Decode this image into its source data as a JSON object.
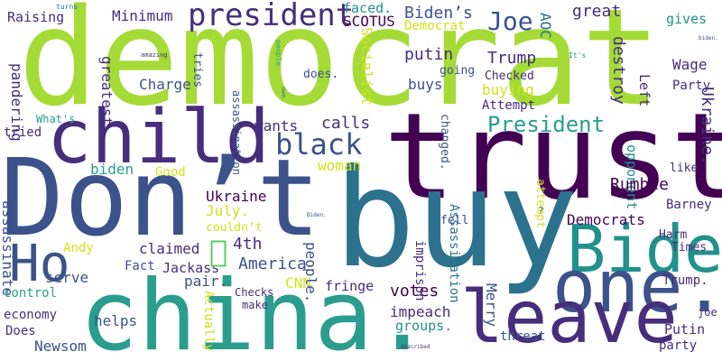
{
  "cloud": {
    "colors": {
      "lime": "#a5db36",
      "yellow": "#d2e21b",
      "green": "#5ec962",
      "teal": "#2a9d8f",
      "cyan": "#21918c",
      "blue": "#2c728e",
      "navy": "#3b528b",
      "indigo": "#472d7b",
      "purple": "#440154",
      "mint": "#4ac16d"
    },
    "words": [
      {
        "text": "democrat",
        "color": "lime"
      },
      {
        "text": "trust",
        "color": "purple"
      },
      {
        "text": "Don’t",
        "color": "navy"
      },
      {
        "text": "buy",
        "color": "blue"
      },
      {
        "text": "china.",
        "color": "teal"
      },
      {
        "text": "child",
        "color": "indigo"
      },
      {
        "text": "Biden",
        "color": "cyan"
      },
      {
        "text": "one.",
        "color": "navy"
      },
      {
        "text": "leave",
        "color": "indigo"
      },
      {
        "text": "Ho",
        "color": "navy"
      },
      {
        "text": "president",
        "color": "indigo"
      },
      {
        "text": "black",
        "color": "navy"
      },
      {
        "text": "President",
        "color": "teal"
      },
      {
        "text": "Joe",
        "color": "navy"
      },
      {
        "text": "Biden’s",
        "color": "navy"
      },
      {
        "text": "Raising",
        "color": "indigo"
      },
      {
        "text": "Minimum",
        "color": "indigo"
      },
      {
        "text": "faced.",
        "color": "cyan"
      },
      {
        "text": "great",
        "color": "indigo"
      },
      {
        "text": "gives",
        "color": "cyan"
      },
      {
        "text": "SCOTUS",
        "color": "purple"
      },
      {
        "text": "Democrat",
        "color": "yellow"
      },
      {
        "text": "Socialist",
        "color": "yellow"
      },
      {
        "text": "AOC",
        "color": "blue"
      },
      {
        "text": "putin",
        "color": "indigo"
      },
      {
        "text": "Trump",
        "color": "indigo"
      },
      {
        "text": "going",
        "color": "navy"
      },
      {
        "text": "Checked",
        "color": "indigo"
      },
      {
        "text": "destroy",
        "color": "indigo"
      },
      {
        "text": "Wage",
        "color": "indigo"
      },
      {
        "text": "Party",
        "color": "indigo"
      },
      {
        "text": "buys",
        "color": "navy"
      },
      {
        "text": "buying",
        "color": "yellow"
      },
      {
        "text": "Attempt",
        "color": "indigo"
      },
      {
        "text": "Charge",
        "color": "navy"
      },
      {
        "text": "greatest",
        "color": "indigo"
      },
      {
        "text": "pandering",
        "color": "indigo"
      },
      {
        "text": "calls",
        "color": "indigo"
      },
      {
        "text": "wants",
        "color": "indigo"
      },
      {
        "text": "assassination",
        "color": "navy"
      },
      {
        "text": "What's",
        "color": "teal"
      },
      {
        "text": "tried",
        "color": "indigo"
      },
      {
        "text": "couldn’t",
        "color": "yellow"
      },
      {
        "text": "woman",
        "color": "yellow"
      },
      {
        "text": "biden",
        "color": "teal"
      },
      {
        "text": "Good",
        "color": "yellow"
      },
      {
        "text": "Ukraine.",
        "color": "indigo"
      },
      {
        "text": "opponent",
        "color": "cyan"
      },
      {
        "text": "like",
        "color": "indigo"
      },
      {
        "text": "Ukraine",
        "color": "purple"
      },
      {
        "text": "Rumble",
        "color": "purple"
      },
      {
        "text": "Barney",
        "color": "indigo"
      },
      {
        "text": "July.",
        "color": "yellow"
      },
      {
        "text": "claimed",
        "color": "indigo"
      },
      {
        "text": "4th",
        "color": "indigo"
      },
      {
        "text": "Democrats",
        "color": "purple"
      },
      {
        "text": "Harm",
        "color": "indigo"
      },
      {
        "text": "Times",
        "color": "indigo"
      },
      {
        "text": "America",
        "color": "navy"
      },
      {
        "text": "Andy",
        "color": "yellow"
      },
      {
        "text": "Fact",
        "color": "navy"
      },
      {
        "text": "pair.",
        "color": "navy"
      },
      {
        "text": "Jackass",
        "color": "indigo"
      },
      {
        "text": "CNN",
        "color": "yellow"
      },
      {
        "text": "fringe",
        "color": "indigo"
      },
      {
        "text": "votes",
        "color": "purple"
      },
      {
        "text": "people.",
        "color": "navy"
      },
      {
        "text": "imprison",
        "color": "indigo"
      },
      {
        "text": "Assassination",
        "color": "blue"
      },
      {
        "text": "fell",
        "color": "navy"
      },
      {
        "text": "Trump.",
        "color": "indigo"
      },
      {
        "text": "serve",
        "color": "navy"
      },
      {
        "text": "control",
        "color": "teal"
      },
      {
        "text": "economy",
        "color": "indigo"
      },
      {
        "text": "Checks",
        "color": "indigo"
      },
      {
        "text": "make",
        "color": "indigo"
      },
      {
        "text": "helps",
        "color": "navy"
      },
      {
        "text": "Does",
        "color": "indigo"
      },
      {
        "text": "Newsom",
        "color": "navy"
      },
      {
        "text": "impeach",
        "color": "indigo"
      },
      {
        "text": "groups.",
        "color": "cyan"
      },
      {
        "text": "Merry",
        "color": "navy"
      },
      {
        "text": "threat",
        "color": "navy"
      },
      {
        "text": "Putin",
        "color": "indigo"
      },
      {
        "text": "party",
        "color": "indigo"
      },
      {
        "text": "joe",
        "color": "indigo"
      },
      {
        "text": "Actually",
        "color": "yellow"
      },
      {
        "text": "assassinate",
        "color": "navy"
      },
      {
        "text": "attempt",
        "color": "yellow"
      },
      {
        "text": "Left",
        "color": "indigo"
      },
      {
        "text": "does.",
        "color": "navy"
      },
      {
        "text": "changed.",
        "color": "navy"
      },
      {
        "text": "tries",
        "color": "navy"
      },
      {
        "text": "people",
        "color": "teal"
      },
      {
        "text": "turns",
        "color": "blue"
      },
      {
        "text": "amazing",
        "color": "indigo"
      },
      {
        "text": "It's",
        "color": "cyan"
      },
      {
        "text": "biden.",
        "color": "navy"
      },
      {
        "text": "own.",
        "color": "blue"
      },
      {
        "text": "Biden.",
        "color": "navy"
      },
      {
        "text": "described",
        "color": "indigo"
      },
      {
        "text": "?",
        "color": "blue"
      }
    ]
  }
}
